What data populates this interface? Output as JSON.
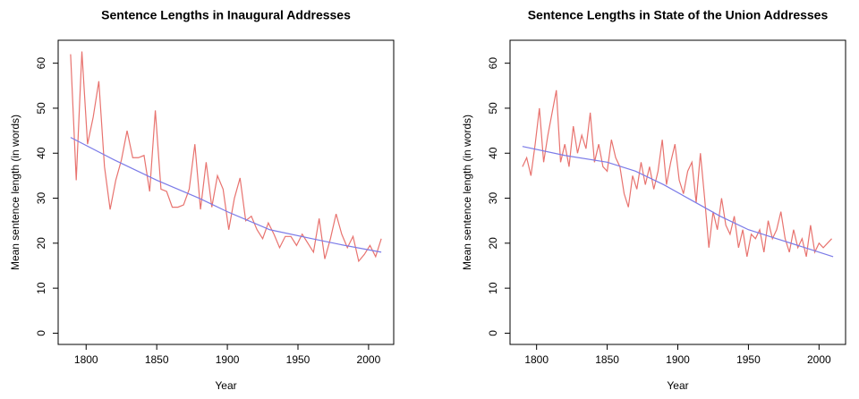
{
  "chart_data": [
    {
      "type": "line",
      "title": "Sentence Lengths in Inaugural Addresses",
      "x_label": "Year",
      "y_label": "Mean sentence length (in words)",
      "xlim": [
        1780.2,
        2017.8
      ],
      "ylim": [
        -2.5,
        65.1
      ],
      "xticks": [
        1800,
        1850,
        1900,
        1950,
        2000
      ],
      "yticks": [
        0,
        10,
        20,
        30,
        40,
        50,
        60
      ],
      "series": [
        {
          "color": "#e8736f",
          "x": [
            1789,
            1793,
            1797,
            1801,
            1805,
            1809,
            1813,
            1817,
            1821,
            1825,
            1829,
            1833,
            1837,
            1841,
            1845,
            1849,
            1853,
            1857,
            1861,
            1865,
            1869,
            1873,
            1877,
            1881,
            1885,
            1889,
            1893,
            1897,
            1901,
            1905,
            1909,
            1913,
            1917,
            1921,
            1925,
            1929,
            1933,
            1937,
            1941,
            1945,
            1949,
            1953,
            1957,
            1961,
            1965,
            1969,
            1973,
            1977,
            1981,
            1985,
            1989,
            1993,
            1997,
            2001,
            2005,
            2009
          ],
          "values": [
            62,
            34,
            62.6,
            42,
            48,
            56,
            37,
            27.5,
            34,
            38.5,
            45,
            39,
            39,
            39.5,
            31.5,
            49.5,
            32,
            31.5,
            28,
            28,
            28.5,
            32,
            42,
            27.5,
            38,
            28,
            35,
            32,
            23,
            30,
            34.5,
            25,
            26,
            23,
            21,
            24.5,
            22,
            19,
            21.5,
            21.5,
            19.5,
            22,
            20,
            18,
            25.5,
            16.5,
            21,
            26.5,
            22,
            19,
            21.5,
            16,
            17.5,
            19.5,
            17,
            21
          ]
        },
        {
          "color": "#7b7be8",
          "x": [
            1789,
            1820,
            1850,
            1880,
            1900,
            1930,
            1960,
            1980,
            2009
          ],
          "values": [
            43.5,
            38.5,
            34,
            30,
            27,
            23,
            21,
            19.7,
            18
          ]
        }
      ]
    },
    {
      "type": "line",
      "title": "Sentence Lengths in State of the Union Addresses",
      "x_label": "Year",
      "y_label": "Mean sentence length (in words)",
      "xlim": [
        1781.2,
        2018.8
      ],
      "ylim": [
        -2.5,
        65.1
      ],
      "xticks": [
        1800,
        1850,
        1900,
        1950,
        2000
      ],
      "yticks": [
        0,
        10,
        20,
        30,
        40,
        50,
        60
      ],
      "series": [
        {
          "color": "#e8736f",
          "x": [
            1790,
            1793,
            1796,
            1799,
            1802,
            1805,
            1808,
            1811,
            1814,
            1817,
            1820,
            1823,
            1826,
            1829,
            1832,
            1835,
            1838,
            1841,
            1844,
            1847,
            1850,
            1853,
            1856,
            1859,
            1862,
            1865,
            1868,
            1871,
            1874,
            1877,
            1880,
            1883,
            1886,
            1889,
            1892,
            1895,
            1898,
            1901,
            1904,
            1907,
            1910,
            1913,
            1916,
            1919,
            1922,
            1925,
            1928,
            1931,
            1934,
            1937,
            1940,
            1943,
            1946,
            1949,
            1952,
            1955,
            1958,
            1961,
            1964,
            1967,
            1970,
            1973,
            1976,
            1979,
            1982,
            1985,
            1988,
            1991,
            1994,
            1997,
            2000,
            2003,
            2006,
            2009
          ],
          "values": [
            37,
            39,
            35,
            42,
            50,
            38,
            44,
            49,
            54,
            38,
            42,
            37,
            46,
            40,
            44,
            41,
            49,
            38,
            42,
            37,
            36,
            43,
            39,
            37,
            31,
            28,
            35,
            32,
            38,
            33,
            37,
            32,
            36,
            43,
            33,
            38,
            42,
            34,
            31,
            36,
            38,
            29,
            40,
            30,
            19,
            27,
            23,
            30,
            24,
            22,
            26,
            19,
            23,
            17,
            22,
            21,
            23,
            18,
            25,
            21,
            23,
            27,
            21,
            18,
            23,
            19,
            21,
            17,
            24,
            18,
            20,
            19,
            20,
            21
          ]
        },
        {
          "color": "#7b7be8",
          "x": [
            1790,
            1820,
            1850,
            1870,
            1890,
            1910,
            1930,
            1950,
            1970,
            1990,
            2010
          ],
          "values": [
            41.5,
            39.5,
            38,
            36,
            33,
            29.5,
            26,
            23,
            21,
            19,
            17
          ]
        }
      ]
    }
  ]
}
